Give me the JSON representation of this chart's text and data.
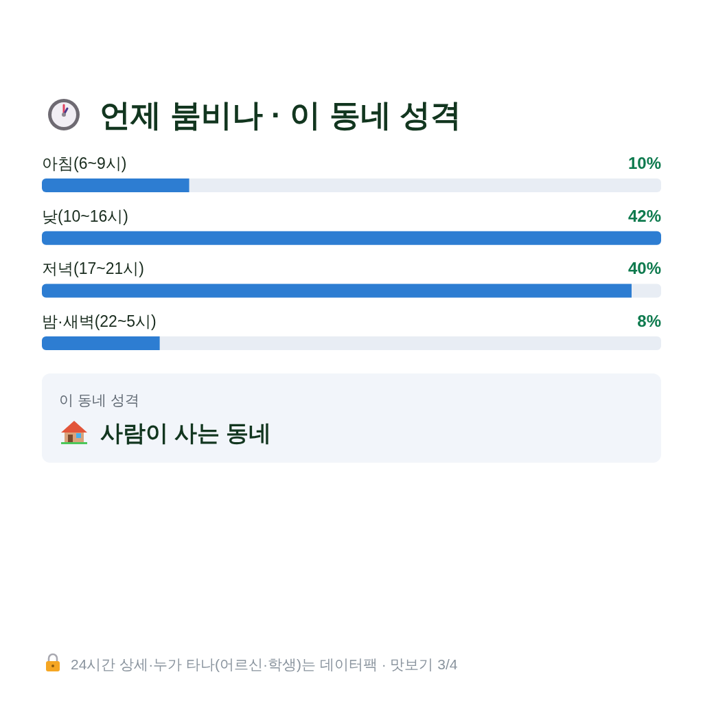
{
  "chart_data": {
    "type": "bar",
    "orientation": "horizontal",
    "title": "언제 붐비나 · 이 동네 성격",
    "categories": [
      "아침(6~9시)",
      "낮(10~16시)",
      "저녁(17~21시)",
      "밤·새벽(22~5시)"
    ],
    "values": [
      10,
      42,
      40,
      8
    ],
    "value_labels": [
      "10%",
      "42%",
      "40%",
      "8%"
    ],
    "color": "#2d7dd2",
    "annotations": [
      "이 동네 성격",
      "사람이 사는 동네",
      "24시간 상세·누가 타나(어르신·학생)는 데이터팩 · 맛보기 3/4"
    ]
  }
}
